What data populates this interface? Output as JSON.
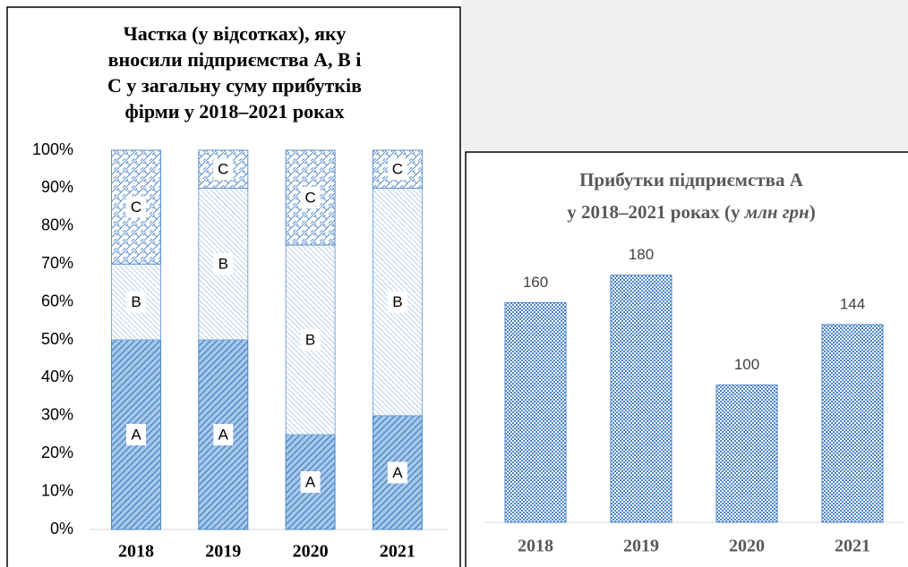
{
  "chart_data": [
    {
      "type": "stacked_bar",
      "title": [
        "Частка (у відсотках), яку",
        "вносили підприємства А, В і",
        "С у  загальну суму прибутків",
        "фірми у 2018–2021 роках"
      ],
      "categories": [
        "2018",
        "2019",
        "2020",
        "2021"
      ],
      "series": [
        {
          "name": "A",
          "color": "#4a86c8",
          "values": [
            50,
            50,
            25,
            30
          ]
        },
        {
          "name": "B",
          "color": "#7aa7d8",
          "values": [
            20,
            40,
            50,
            60
          ]
        },
        {
          "name": "C",
          "color": "#5b8fcc",
          "values": [
            30,
            10,
            25,
            10
          ]
        }
      ],
      "ylim": [
        0,
        100
      ],
      "yticks": [
        {
          "value": 0,
          "label": "0%"
        },
        {
          "value": 10,
          "label": "10%"
        },
        {
          "value": 20,
          "label": "20%"
        },
        {
          "value": 30,
          "label": "30%"
        },
        {
          "value": 40,
          "label": "40%"
        },
        {
          "value": 50,
          "label": "50%"
        },
        {
          "value": 60,
          "label": "60%"
        },
        {
          "value": 70,
          "label": "70%"
        },
        {
          "value": 80,
          "label": "80%"
        },
        {
          "value": 90,
          "label": "90%"
        },
        {
          "value": 100,
          "label": "100%"
        }
      ]
    },
    {
      "type": "bar",
      "title": [
        "Прибутки підприємства А",
        "у 2018–2021 роках (у ",
        "млн грн",
        ")"
      ],
      "categories": [
        "2018",
        "2019",
        "2020",
        "2021"
      ],
      "values": [
        160,
        180,
        100,
        144
      ],
      "color": "#4a86c8",
      "ylim": [
        0,
        200
      ]
    }
  ]
}
